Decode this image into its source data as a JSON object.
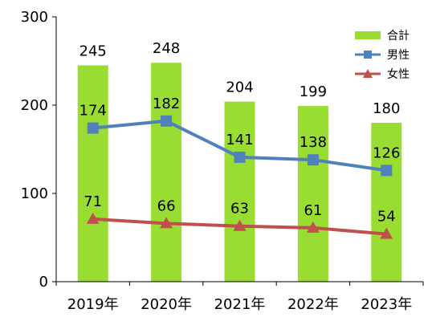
{
  "chart_data": {
    "type": "bar",
    "categories": [
      "2019年",
      "2020年",
      "2021年",
      "2022年",
      "2023年"
    ],
    "series": [
      {
        "name": "合計",
        "kind": "bar",
        "values": [
          245,
          248,
          204,
          199,
          180
        ],
        "color": "#99DD33"
      },
      {
        "name": "男性",
        "kind": "line",
        "marker": "square",
        "values": [
          174,
          182,
          141,
          138,
          126
        ],
        "color": "#4F81BD"
      },
      {
        "name": "女性",
        "kind": "line",
        "marker": "triangle",
        "values": [
          71,
          66,
          63,
          61,
          54
        ],
        "color": "#C0504D"
      }
    ],
    "ylim": [
      0,
      300
    ],
    "yticks": [
      0,
      100,
      200,
      300
    ],
    "legend_position": "top-right",
    "grid": false,
    "title": "",
    "xlabel": "",
    "ylabel": ""
  }
}
